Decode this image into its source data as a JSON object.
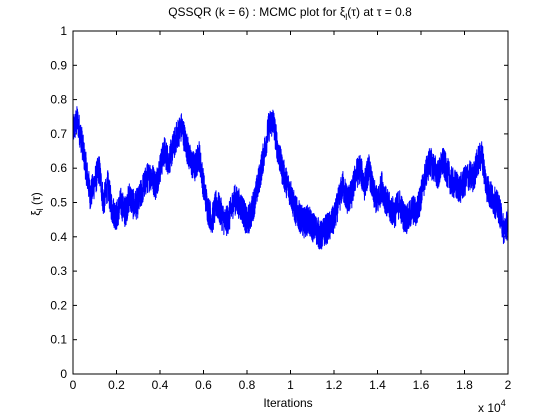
{
  "chart_data": {
    "type": "line",
    "title": "QSSQR (k = 6) : MCMC plot for ξ",
    "title_sub": "l",
    "title_rest": "(τ) at τ = 0.8",
    "xlabel": "Iterations",
    "ylabel_main": "ξ",
    "ylabel_sub": "l",
    "ylabel_rest": " (τ)",
    "x_exponent_base": "x 10",
    "x_exponent_power": "4",
    "xlim": [
      0,
      20000
    ],
    "ylim": [
      0,
      1
    ],
    "grid": false,
    "line_color": "#0000ff",
    "x_ticks": [
      0,
      2000,
      4000,
      6000,
      8000,
      10000,
      12000,
      14000,
      16000,
      18000,
      20000
    ],
    "x_tick_labels": [
      "0",
      "0.2",
      "0.4",
      "0.6",
      "0.8",
      "1",
      "1.2",
      "1.4",
      "1.6",
      "1.8",
      "2"
    ],
    "y_ticks": [
      0,
      0.1,
      0.2,
      0.3,
      0.4,
      0.5,
      0.6,
      0.7,
      0.8,
      0.9,
      1
    ],
    "y_tick_labels": [
      "0",
      "0.1",
      "0.2",
      "0.3",
      "0.4",
      "0.5",
      "0.6",
      "0.7",
      "0.8",
      "0.9",
      "1"
    ],
    "series": [
      {
        "x": [
          0,
          200,
          400,
          600,
          800,
          1000,
          1200,
          1400,
          1600,
          1800,
          2000,
          2200,
          2400,
          2600,
          2800,
          3000,
          3200,
          3400,
          3600,
          3800,
          4000,
          4200,
          4400,
          4600,
          4800,
          5000,
          5200,
          5400,
          5600,
          5800,
          6000,
          6200,
          6400,
          6600,
          6800,
          7000,
          7200,
          7400,
          7600,
          7800,
          8000,
          8200,
          8400,
          8600,
          8800,
          9000,
          9200,
          9400,
          9600,
          9800,
          10000,
          10200,
          10400,
          10600,
          10800,
          11000,
          11200,
          11400,
          11600,
          11800,
          12000,
          12200,
          12400,
          12600,
          12800,
          13000,
          13200,
          13400,
          13600,
          13800,
          14000,
          14200,
          14400,
          14600,
          14800,
          15000,
          15200,
          15400,
          15600,
          15800,
          16000,
          16200,
          16400,
          16600,
          16800,
          17000,
          17200,
          17400,
          17600,
          17800,
          18000,
          18200,
          18400,
          18600,
          18800,
          19000,
          19200,
          19400,
          19600,
          19800,
          20000
        ],
        "y": [
          0.71,
          0.74,
          0.68,
          0.6,
          0.52,
          0.56,
          0.6,
          0.5,
          0.55,
          0.48,
          0.46,
          0.5,
          0.47,
          0.52,
          0.49,
          0.5,
          0.54,
          0.57,
          0.58,
          0.55,
          0.6,
          0.65,
          0.62,
          0.66,
          0.7,
          0.72,
          0.67,
          0.62,
          0.6,
          0.64,
          0.55,
          0.48,
          0.45,
          0.5,
          0.47,
          0.44,
          0.46,
          0.51,
          0.5,
          0.48,
          0.44,
          0.47,
          0.52,
          0.58,
          0.65,
          0.72,
          0.74,
          0.66,
          0.6,
          0.56,
          0.53,
          0.48,
          0.46,
          0.44,
          0.45,
          0.43,
          0.42,
          0.4,
          0.42,
          0.43,
          0.45,
          0.5,
          0.55,
          0.51,
          0.52,
          0.58,
          0.6,
          0.55,
          0.6,
          0.53,
          0.5,
          0.55,
          0.5,
          0.48,
          0.47,
          0.5,
          0.46,
          0.45,
          0.48,
          0.47,
          0.52,
          0.58,
          0.62,
          0.6,
          0.58,
          0.62,
          0.59,
          0.56,
          0.55,
          0.54,
          0.56,
          0.58,
          0.57,
          0.62,
          0.64,
          0.55,
          0.52,
          0.5,
          0.48,
          0.42,
          0.44
        ]
      }
    ]
  }
}
